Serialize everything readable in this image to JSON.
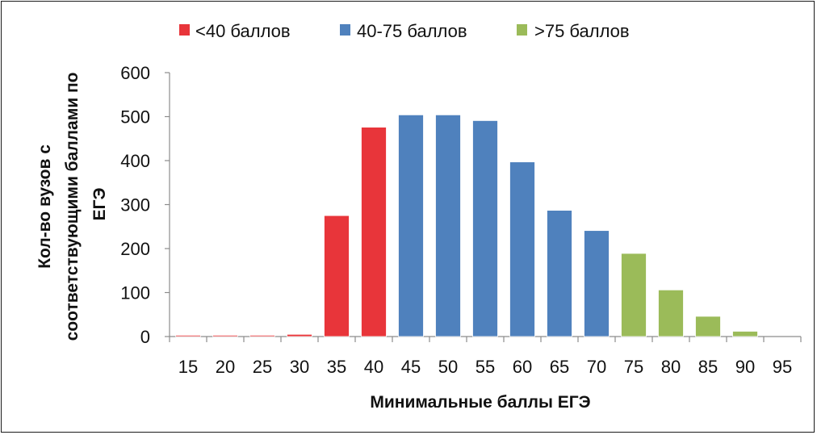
{
  "chart_data": {
    "type": "bar",
    "categories": [
      "15",
      "20",
      "25",
      "30",
      "35",
      "40",
      "45",
      "50",
      "55",
      "60",
      "65",
      "70",
      "75",
      "80",
      "85",
      "90",
      "95"
    ],
    "values": [
      3,
      3,
      3,
      5,
      275,
      476,
      504,
      504,
      491,
      397,
      287,
      241,
      189,
      106,
      46,
      12,
      0
    ],
    "groups": [
      0,
      0,
      0,
      0,
      0,
      0,
      1,
      1,
      1,
      1,
      1,
      1,
      2,
      2,
      2,
      2,
      2
    ],
    "legend": [
      {
        "label": "<40 баллов",
        "color": "#e8353a"
      },
      {
        "label": "40-75 баллов",
        "color": "#4f81bd"
      },
      {
        "label": ">75 баллов",
        "color": "#9bbb59"
      }
    ],
    "xlabel": "Минимальные баллы ЕГЭ",
    "ylabel_lines": [
      "Кол-во вузов с",
      "соответствующими баллами по",
      "ЕГЭ"
    ],
    "ylim": [
      0,
      600
    ],
    "yticks": [
      0,
      100,
      200,
      300,
      400,
      500,
      600
    ],
    "legend_position": "top",
    "grid": false
  }
}
